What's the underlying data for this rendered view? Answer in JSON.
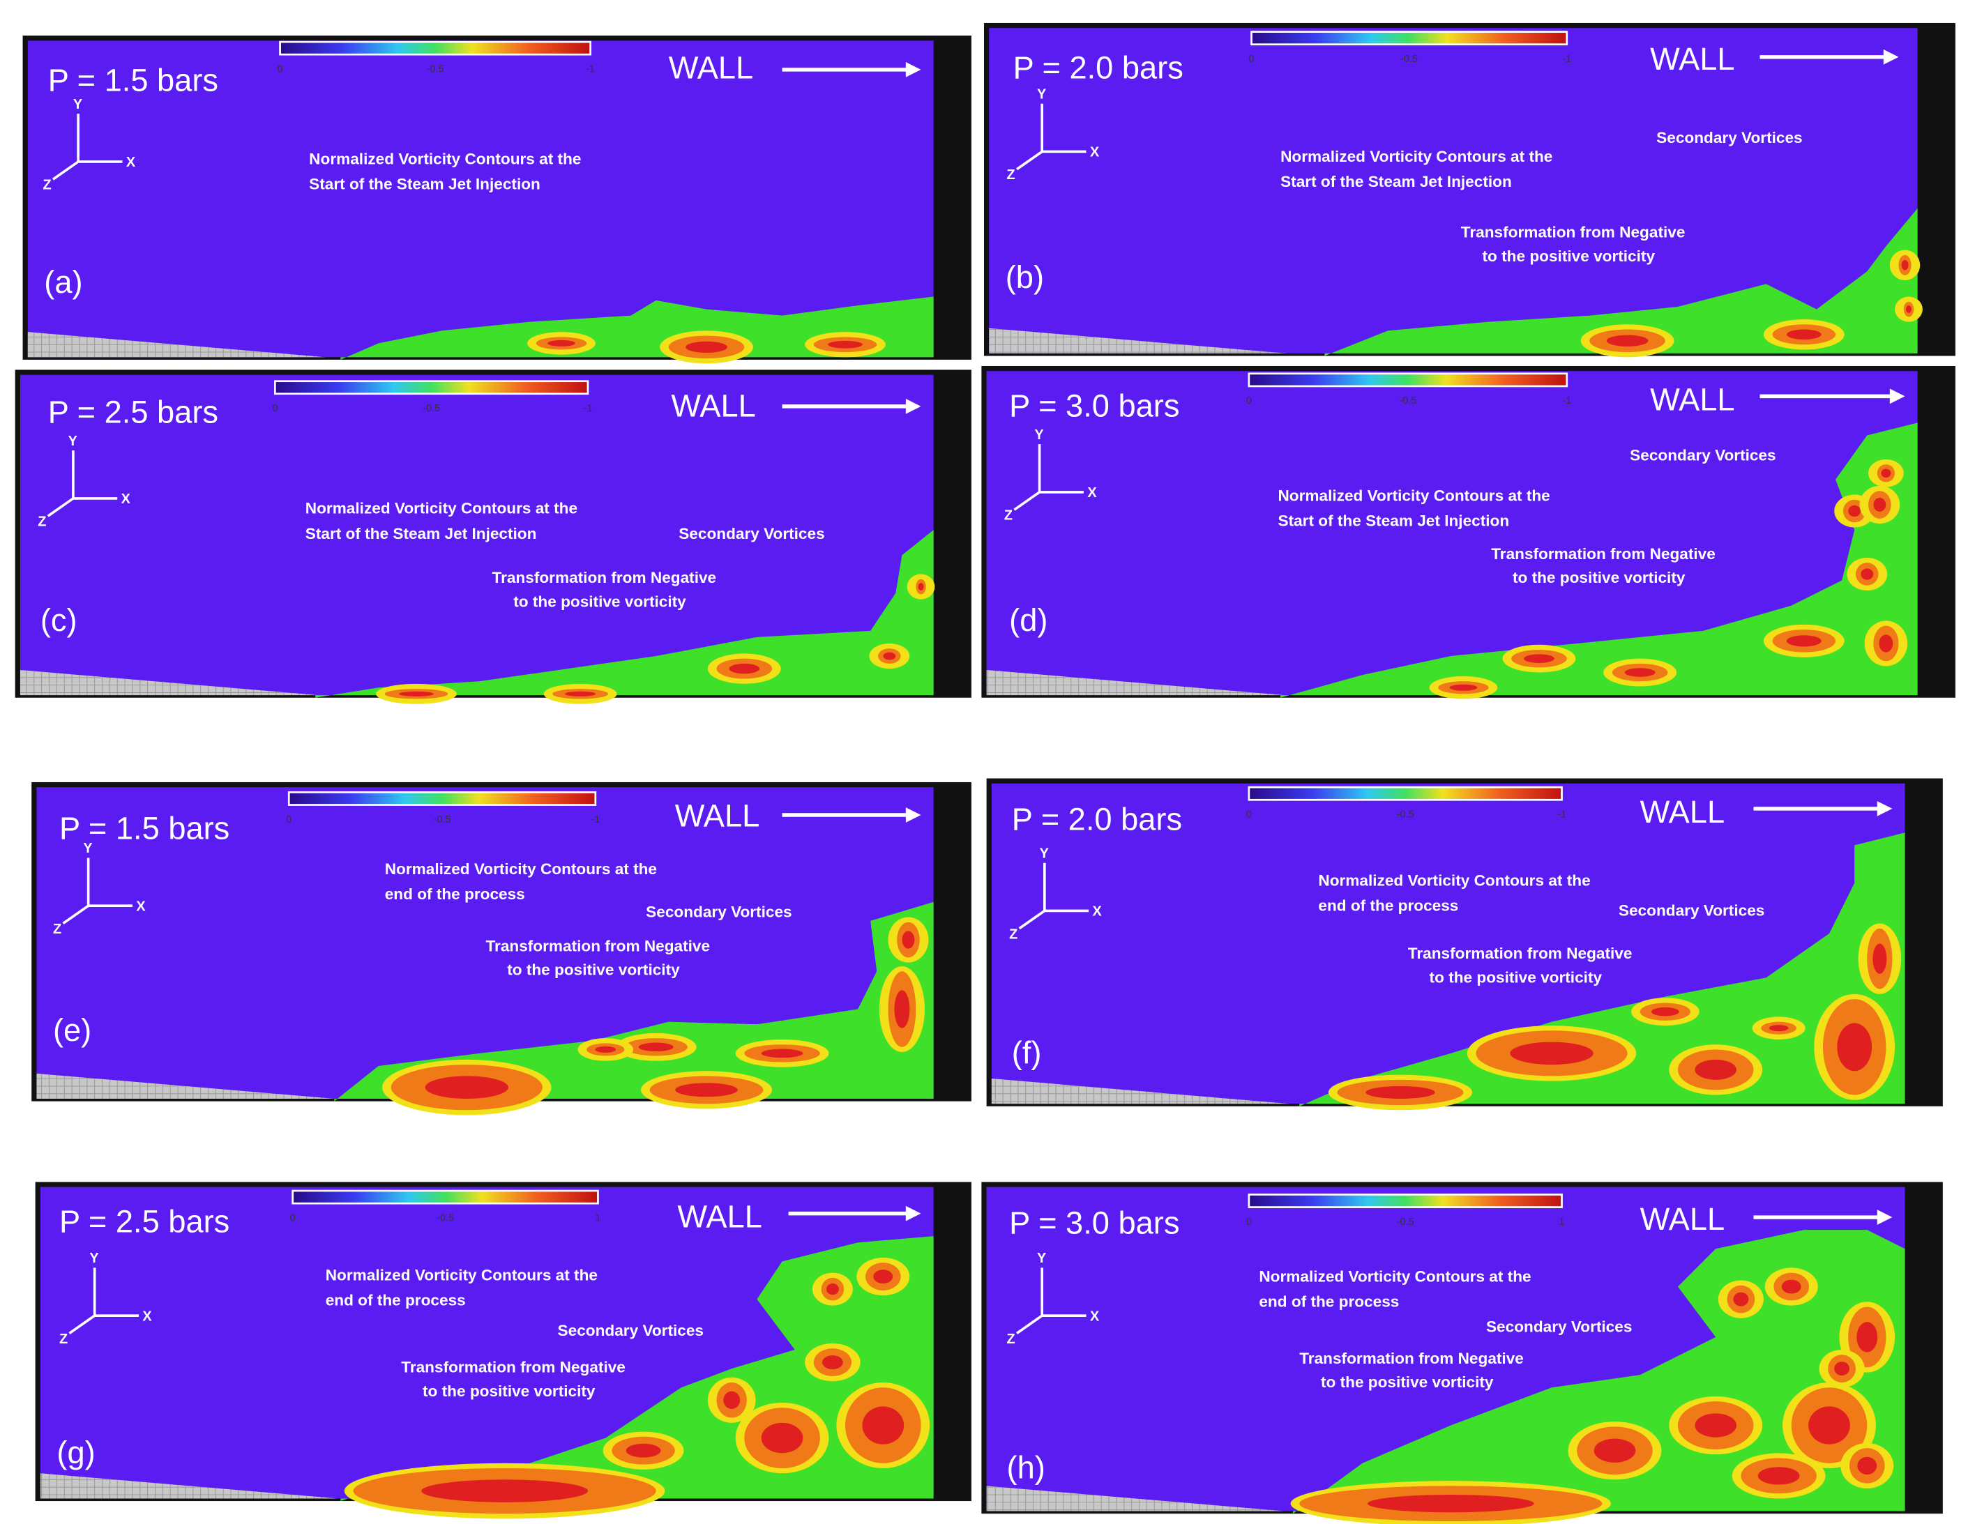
{
  "axis_labels": [
    "Y",
    "X",
    "Z"
  ],
  "panels": [
    {
      "pressure": "P = 1.5 bars",
      "letter": "(a)",
      "wall": "WALL",
      "colorbar": [
        "0",
        "-0.5",
        "-1"
      ],
      "title": [
        "Normalized Vorticity Contours at the",
        "Start of the Steam Jet Injection"
      ]
    },
    {
      "pressure": "P = 2.0 bars",
      "letter": "(b)",
      "wall": "WALL",
      "colorbar": [
        "0",
        "-0.5",
        "-1"
      ],
      "title": [
        "Normalized Vorticity Contours at the",
        "Start of the Steam Jet Injection"
      ],
      "secondary": "Secondary Vortices",
      "transformation": [
        "Transformation from Negative",
        "to the positive vorticity"
      ]
    },
    {
      "pressure": "P = 2.5 bars",
      "letter": "(c)",
      "wall": "WALL",
      "colorbar": [
        "0",
        "-0.5",
        "-1"
      ],
      "title": [
        "Normalized Vorticity Contours at the",
        "Start of the Steam Jet Injection"
      ],
      "secondary": "Secondary Vortices",
      "transformation": [
        "Transformation from Negative",
        "to the positive vorticity"
      ]
    },
    {
      "pressure": "P = 3.0 bars",
      "letter": "(d)",
      "wall": "WALL",
      "colorbar": [
        "0",
        "-0.5",
        "-1"
      ],
      "title": [
        "Normalized Vorticity Contours at the",
        "Start of the Steam Jet Injection"
      ],
      "secondary": "Secondary Vortices",
      "transformation": [
        "Transformation from Negative",
        "to the positive vorticity"
      ]
    },
    {
      "pressure": "P = 1.5 bars",
      "letter": "(e)",
      "wall": "WALL",
      "colorbar": [
        "0",
        "-0.5",
        "-1"
      ],
      "title": [
        "Normalized Vorticity Contours at the",
        "end of the process"
      ],
      "secondary": "Secondary Vortices",
      "transformation": [
        "Transformation from Negative",
        "to the positive vorticity"
      ]
    },
    {
      "pressure": "P = 2.0 bars",
      "letter": "(f)",
      "wall": "WALL",
      "colorbar": [
        "0",
        "-0.5",
        "-1"
      ],
      "title": [
        "Normalized Vorticity Contours at the",
        "end of the process"
      ],
      "secondary": "Secondary Vortices",
      "transformation": [
        "Transformation from Negative",
        "to the positive vorticity"
      ]
    },
    {
      "pressure": "P = 2.5 bars",
      "letter": "(g)",
      "wall": "WALL",
      "colorbar": [
        "0",
        "-0.5",
        "1"
      ],
      "title": [
        "Normalized Vorticity Contours at the",
        "end of the process"
      ],
      "secondary": "Secondary Vortices",
      "transformation": [
        "Transformation from Negative",
        "to the positive vorticity"
      ]
    },
    {
      "pressure": "P = 3.0 bars",
      "letter": "(h)",
      "wall": "WALL",
      "colorbar": [
        "0",
        "-0.5",
        "1"
      ],
      "title": [
        "Normalized Vorticity Contours at the",
        "end of the process"
      ],
      "secondary": "Secondary Vortices",
      "transformation": [
        "Transformation from Negative",
        "to the positive vorticity"
      ]
    }
  ]
}
